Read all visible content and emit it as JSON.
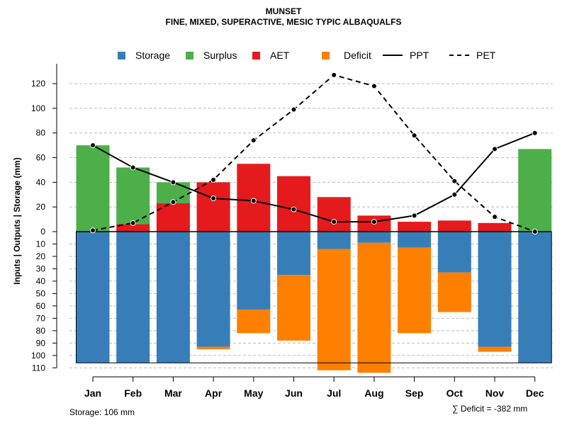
{
  "chart_data": {
    "type": "bar",
    "title": "MUNSET",
    "subtitle": "FINE, MIXED, SUPERACTIVE, MESIC TYPIC ALBAQUALFS",
    "ylabel": "Inputs | Outputs | Storage    (mm)",
    "xlabel": "",
    "categories": [
      "Jan",
      "Feb",
      "Mar",
      "Apr",
      "May",
      "Jun",
      "Jul",
      "Aug",
      "Sep",
      "Oct",
      "Nov",
      "Dec"
    ],
    "ylim_upper": [
      0,
      130
    ],
    "ylim_lower": [
      0,
      110
    ],
    "upper_ticks": [
      0,
      20,
      40,
      60,
      80,
      100,
      120
    ],
    "lower_ticks": [
      0,
      10,
      20,
      30,
      40,
      50,
      60,
      70,
      80,
      90,
      100,
      110
    ],
    "grid": true,
    "storage_capacity": 106,
    "series": [
      {
        "name": "AET",
        "color": "#E41A1C",
        "values": [
          0,
          6,
          23,
          40,
          55,
          45,
          28,
          13,
          8,
          9,
          7,
          0
        ]
      },
      {
        "name": "Surplus",
        "color": "#4DAF4A",
        "values": [
          70,
          46,
          17,
          0,
          0,
          0,
          0,
          0,
          0,
          0,
          0,
          67
        ]
      },
      {
        "name": "Storage",
        "color": "#377EB8",
        "values": [
          106,
          106,
          106,
          93,
          63,
          35,
          14,
          9,
          13,
          33,
          93,
          106
        ]
      },
      {
        "name": "Deficit",
        "color": "#FF7F00",
        "values": [
          0,
          0,
          0,
          2,
          19,
          53,
          98,
          105,
          69,
          32,
          4,
          0
        ]
      },
      {
        "name": "PPT",
        "style": "solid",
        "values": [
          70,
          52,
          40,
          27,
          25,
          18,
          8,
          8,
          13,
          30,
          67,
          80
        ]
      },
      {
        "name": "PET",
        "style": "dashed",
        "values": [
          1,
          7,
          24,
          42,
          74,
          99,
          127,
          118,
          78,
          41,
          12,
          0
        ]
      }
    ]
  },
  "legend": {
    "storage": "Storage",
    "surplus": "Surplus",
    "aet": "AET",
    "deficit": "Deficit",
    "ppt": "PPT",
    "pet": "PET"
  },
  "footer": {
    "storage_text": "Storage: 106 mm",
    "deficit_text": "∑ Deficit = -382 mm"
  },
  "colors": {
    "storage": "#377EB8",
    "surplus": "#4DAF4A",
    "aet": "#E41A1C",
    "deficit": "#FF7F00"
  }
}
